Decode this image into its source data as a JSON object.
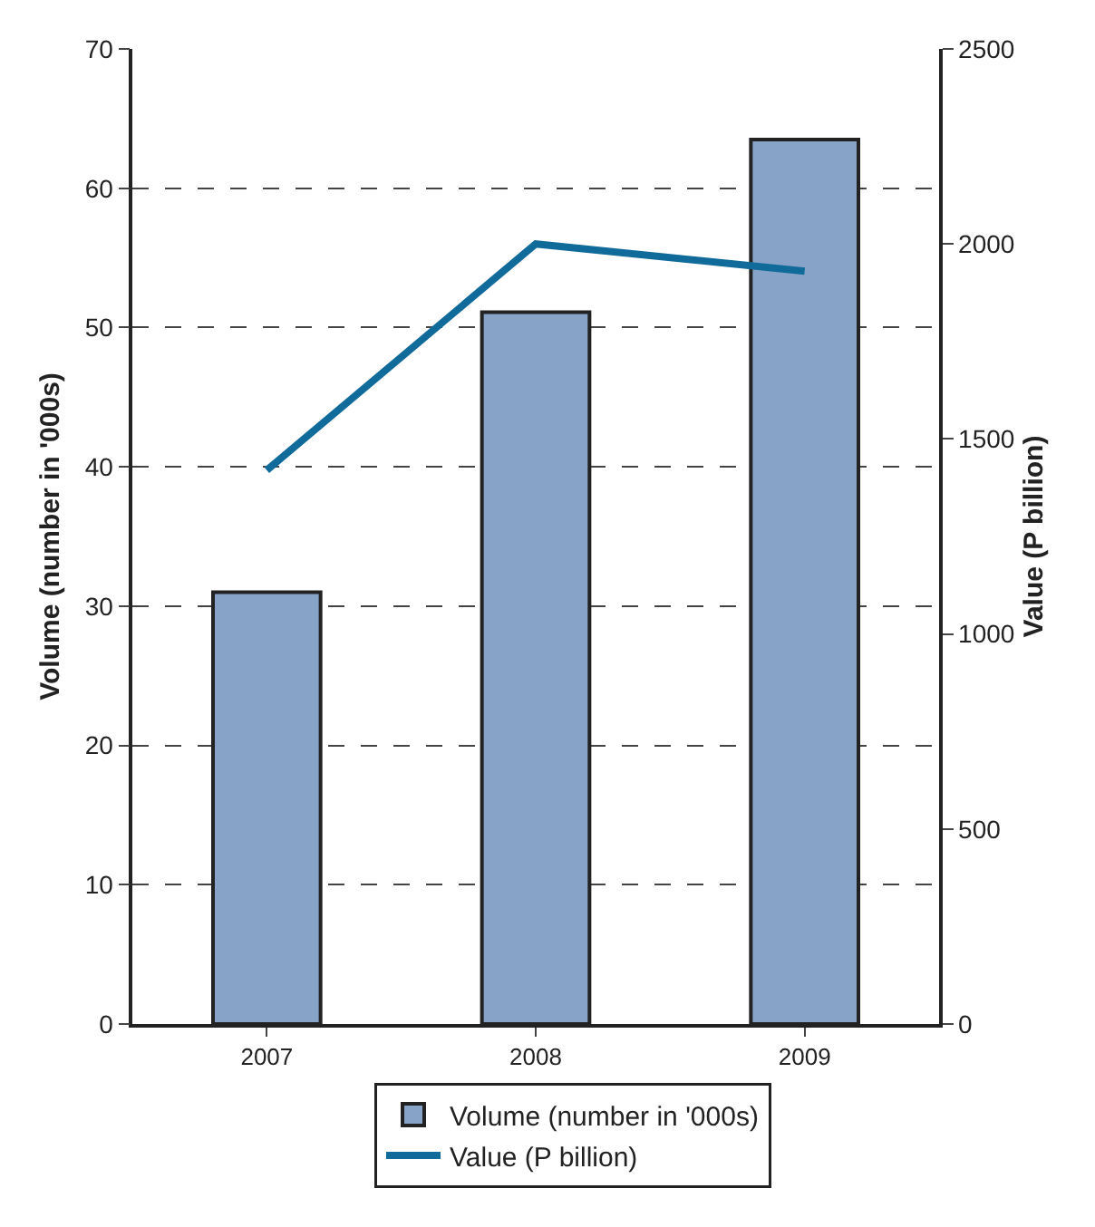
{
  "chart_data": {
    "type": "bar",
    "categories": [
      "2007",
      "2008",
      "2009"
    ],
    "ylabel": "Volume (number in '000s)",
    "y2label": "Value (P billion)",
    "series": [
      {
        "name": "Volume (number in '000s)",
        "color": "#87a3c8",
        "values": [
          31,
          51.1,
          63.5
        ]
      },
      {
        "name": "Value (P billion)",
        "type": "line",
        "axis": "y2",
        "color": "#106b9a",
        "values": [
          1420,
          2000,
          1930
        ]
      }
    ],
    "ylim": [
      0,
      70
    ],
    "yticks": [
      0,
      10,
      20,
      30,
      40,
      50,
      60,
      70
    ],
    "y2lim": [
      0,
      2500
    ],
    "y2ticks": [
      0,
      500,
      1000,
      1500,
      2000,
      2500
    ],
    "grid": "y",
    "legend": "bottom",
    "marker": "none",
    "line_style": "solid"
  }
}
